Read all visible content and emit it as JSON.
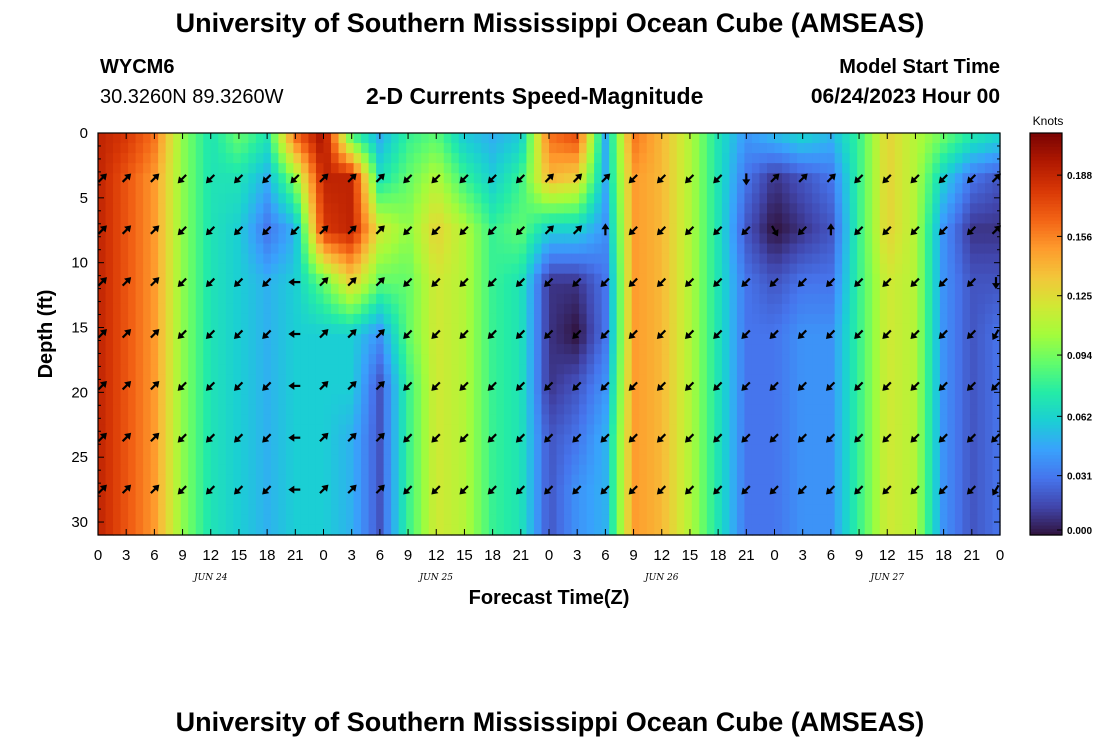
{
  "page": {
    "title_top": "University of Southern Mississippi Ocean Cube (AMSEAS)",
    "title_bottom": "University of Southern Mississippi Ocean Cube (AMSEAS)",
    "station": "WYCM6",
    "coords": "30.3260N  89.3260W",
    "subtitle": "2-D Currents Speed-Magnitude",
    "model_start_label": "Model Start Time",
    "model_start_value": "06/24/2023 Hour 00"
  },
  "chart_data": {
    "type": "heatmap",
    "title": "2-D Currents Speed-Magnitude",
    "xlabel": "Forecast Time(Z)",
    "ylabel": "Depth (ft)",
    "colorbar_label": "Knots",
    "colorbar_ticks": [
      "0.000",
      "0.031",
      "0.062",
      "0.094",
      "0.125",
      "0.156",
      "0.188"
    ],
    "colorbar_range": [
      0,
      0.21
    ],
    "colors": {
      "stops": [
        "#30123b",
        "#4145ab",
        "#4675ed",
        "#39a2fc",
        "#1bcfd4",
        "#24eca6",
        "#61fc6c",
        "#a4fc3b",
        "#d1e834",
        "#f3c63a",
        "#fe9b2d",
        "#f36315",
        "#d93806",
        "#b11901",
        "#7a0403"
      ]
    },
    "x_tick_labels": [
      "0",
      "3",
      "6",
      "9",
      "12",
      "15",
      "18",
      "21",
      "0",
      "3",
      "6",
      "9",
      "12",
      "15",
      "18",
      "21",
      "0",
      "3",
      "6",
      "9",
      "12",
      "15",
      "18",
      "21",
      "0",
      "3",
      "6",
      "9",
      "12",
      "15",
      "18",
      "21",
      "0"
    ],
    "x_range_hours": [
      0,
      96
    ],
    "day_labels": [
      {
        "hour": 12,
        "text": "JUN 24"
      },
      {
        "hour": 36,
        "text": "JUN 25"
      },
      {
        "hour": 60,
        "text": "JUN 26"
      },
      {
        "hour": 84,
        "text": "JUN 27"
      }
    ],
    "y_ticks": [
      0,
      5,
      10,
      15,
      20,
      25,
      30
    ],
    "y_range_ft": [
      0,
      31
    ],
    "depths_ft": [
      0.5,
      3.5,
      7.5,
      11.5,
      15.5,
      19.5,
      23.5,
      27.5,
      31
    ],
    "hours": [
      0,
      3,
      6,
      9,
      12,
      15,
      18,
      21,
      24,
      27,
      30,
      33,
      36,
      39,
      42,
      45,
      48,
      51,
      54,
      57,
      60,
      63,
      66,
      69,
      72,
      75,
      78,
      81,
      84,
      87,
      90,
      93,
      96
    ],
    "speed_knots": [
      [
        0.19,
        0.18,
        0.16,
        0.1,
        0.07,
        0.09,
        0.07,
        0.16,
        0.2,
        0.09,
        0.05,
        0.08,
        0.09,
        0.06,
        0.05,
        0.06,
        0.16,
        0.17,
        0.05,
        0.16,
        0.14,
        0.11,
        0.07,
        0.04,
        0.05,
        0.06,
        0.05,
        0.08,
        0.13,
        0.11,
        0.09,
        0.07,
        0.06
      ],
      [
        0.19,
        0.17,
        0.15,
        0.1,
        0.07,
        0.07,
        0.05,
        0.1,
        0.19,
        0.19,
        0.07,
        0.09,
        0.11,
        0.08,
        0.06,
        0.08,
        0.14,
        0.13,
        0.05,
        0.15,
        0.14,
        0.11,
        0.07,
        0.03,
        0.01,
        0.02,
        0.03,
        0.08,
        0.13,
        0.11,
        0.06,
        0.03,
        0.02
      ],
      [
        0.19,
        0.17,
        0.15,
        0.1,
        0.07,
        0.06,
        0.03,
        0.05,
        0.18,
        0.19,
        0.12,
        0.1,
        0.13,
        0.11,
        0.08,
        0.09,
        0.06,
        0.06,
        0.04,
        0.15,
        0.14,
        0.11,
        0.07,
        0.02,
        0.0,
        0.01,
        0.02,
        0.08,
        0.13,
        0.11,
        0.04,
        0.01,
        0.01
      ],
      [
        0.19,
        0.17,
        0.15,
        0.1,
        0.07,
        0.06,
        0.05,
        0.06,
        0.09,
        0.13,
        0.09,
        0.09,
        0.12,
        0.11,
        0.08,
        0.07,
        0.01,
        0.01,
        0.03,
        0.15,
        0.14,
        0.11,
        0.07,
        0.03,
        0.02,
        0.03,
        0.03,
        0.08,
        0.12,
        0.11,
        0.04,
        0.02,
        0.02
      ],
      [
        0.19,
        0.17,
        0.15,
        0.1,
        0.07,
        0.06,
        0.05,
        0.06,
        0.06,
        0.06,
        0.04,
        0.09,
        0.12,
        0.11,
        0.08,
        0.07,
        0.01,
        0.0,
        0.03,
        0.15,
        0.14,
        0.11,
        0.07,
        0.03,
        0.03,
        0.04,
        0.04,
        0.08,
        0.12,
        0.11,
        0.04,
        0.02,
        0.03
      ],
      [
        0.19,
        0.17,
        0.15,
        0.1,
        0.07,
        0.06,
        0.05,
        0.06,
        0.06,
        0.06,
        0.02,
        0.08,
        0.12,
        0.11,
        0.08,
        0.07,
        0.01,
        0.02,
        0.04,
        0.15,
        0.14,
        0.11,
        0.07,
        0.03,
        0.03,
        0.04,
        0.04,
        0.08,
        0.12,
        0.11,
        0.04,
        0.02,
        0.03
      ],
      [
        0.19,
        0.17,
        0.15,
        0.1,
        0.07,
        0.06,
        0.05,
        0.06,
        0.06,
        0.05,
        0.02,
        0.08,
        0.12,
        0.11,
        0.08,
        0.07,
        0.02,
        0.03,
        0.05,
        0.15,
        0.14,
        0.11,
        0.07,
        0.03,
        0.03,
        0.04,
        0.04,
        0.08,
        0.12,
        0.11,
        0.04,
        0.02,
        0.03
      ],
      [
        0.19,
        0.17,
        0.15,
        0.1,
        0.07,
        0.06,
        0.05,
        0.06,
        0.06,
        0.05,
        0.02,
        0.08,
        0.12,
        0.11,
        0.08,
        0.07,
        0.02,
        0.04,
        0.05,
        0.15,
        0.14,
        0.11,
        0.07,
        0.03,
        0.03,
        0.04,
        0.04,
        0.08,
        0.12,
        0.11,
        0.04,
        0.02,
        0.03
      ],
      [
        0.19,
        0.17,
        0.15,
        0.1,
        0.07,
        0.06,
        0.05,
        0.06,
        0.06,
        0.05,
        0.02,
        0.08,
        0.12,
        0.11,
        0.08,
        0.07,
        0.02,
        0.04,
        0.05,
        0.15,
        0.14,
        0.11,
        0.07,
        0.03,
        0.03,
        0.04,
        0.04,
        0.08,
        0.12,
        0.11,
        0.04,
        0.02,
        0.03
      ]
    ],
    "arrow_depths_ft": [
      3.5,
      7.5,
      11.5,
      15.5,
      19.5,
      23.5,
      27.5
    ],
    "arrow_directions_deg": [
      [
        45,
        45,
        45,
        225,
        225,
        225,
        225,
        225,
        45,
        45,
        45,
        225,
        225,
        225,
        225,
        225,
        45,
        45,
        45,
        225,
        225,
        225,
        225,
        270,
        45,
        45,
        45,
        225,
        225,
        225,
        225,
        225,
        45
      ],
      [
        45,
        45,
        45,
        225,
        225,
        225,
        225,
        225,
        45,
        45,
        45,
        225,
        225,
        225,
        225,
        225,
        45,
        45,
        90,
        225,
        225,
        225,
        225,
        225,
        300,
        225,
        90,
        225,
        225,
        225,
        225,
        225,
        45
      ],
      [
        45,
        45,
        45,
        225,
        225,
        225,
        225,
        180,
        45,
        45,
        45,
        225,
        225,
        225,
        225,
        225,
        225,
        225,
        225,
        225,
        225,
        225,
        225,
        225,
        225,
        225,
        225,
        225,
        225,
        225,
        225,
        225,
        270
      ],
      [
        45,
        45,
        45,
        225,
        225,
        225,
        225,
        180,
        45,
        45,
        45,
        225,
        225,
        225,
        225,
        225,
        225,
        225,
        225,
        225,
        225,
        225,
        225,
        225,
        225,
        225,
        225,
        225,
        225,
        225,
        225,
        225,
        240
      ],
      [
        45,
        45,
        45,
        225,
        225,
        225,
        225,
        180,
        45,
        45,
        45,
        225,
        225,
        225,
        225,
        225,
        225,
        225,
        225,
        225,
        225,
        225,
        225,
        225,
        225,
        225,
        225,
        225,
        225,
        225,
        225,
        225,
        225
      ],
      [
        45,
        45,
        45,
        225,
        225,
        225,
        225,
        180,
        45,
        45,
        45,
        225,
        225,
        225,
        225,
        225,
        225,
        225,
        225,
        225,
        225,
        225,
        225,
        225,
        225,
        225,
        225,
        225,
        225,
        225,
        225,
        225,
        225
      ],
      [
        45,
        45,
        45,
        225,
        225,
        225,
        225,
        180,
        45,
        45,
        45,
        225,
        225,
        225,
        225,
        225,
        225,
        225,
        225,
        225,
        225,
        225,
        225,
        225,
        225,
        225,
        225,
        225,
        225,
        225,
        225,
        225,
        240
      ]
    ]
  }
}
